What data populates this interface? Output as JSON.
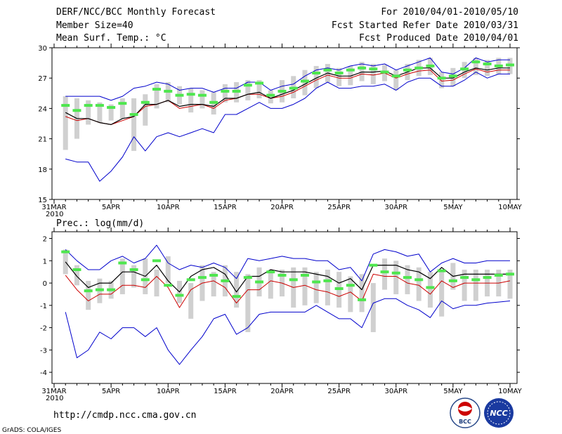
{
  "header": {
    "title": "DERF/NCC/BCC Monthly Forecast",
    "member": "Member Size=40",
    "variable1": "Mean Surf. Temp.: °C",
    "period": "For 2010/04/01-2010/05/10",
    "started": "Fcst Started Refer Date 2010/03/31",
    "produced": "Fcst Produced Date 2010/04/01"
  },
  "footer": {
    "url": "http://cmdp.ncc.cma.gov.cn",
    "credit": "GrADS: COLA/IGES",
    "logo_bcc": "BCC",
    "logo_ncc": "NCC"
  },
  "colors": {
    "bar": "#d0d0d0",
    "median": "#4ee64e",
    "mean": "#000000",
    "red": "#cc0000",
    "envelope": "#0000cc"
  },
  "chart_data": [
    {
      "type": "line",
      "title": "Mean Surf. Temp.: °C",
      "ylim": [
        15,
        30
      ],
      "yticks": [
        15,
        18,
        21,
        24,
        27,
        30
      ],
      "x_start_label": "31MAR",
      "x_year_label": "2010",
      "xtick_labels": [
        "31MAR",
        "5APR",
        "10APR",
        "15APR",
        "20APR",
        "25APR",
        "30APR",
        "5MAY",
        "10MAY"
      ],
      "xtick_days": [
        0,
        5,
        10,
        15,
        20,
        25,
        30,
        35,
        40
      ],
      "days": [
        1,
        2,
        3,
        4,
        5,
        6,
        7,
        8,
        9,
        10,
        11,
        12,
        13,
        14,
        15,
        16,
        17,
        18,
        19,
        20,
        21,
        22,
        23,
        24,
        25,
        26,
        27,
        28,
        29,
        30,
        31,
        32,
        33,
        34,
        35,
        36,
        37,
        38,
        39,
        40
      ],
      "series": [
        {
          "name": "box_low",
          "values": [
            19.9,
            21.0,
            22.4,
            22.6,
            22.8,
            23.0,
            19.8,
            22.3,
            24.0,
            24.6,
            24.4,
            23.6,
            24.0,
            23.4,
            24.6,
            24.6,
            24.8,
            25.0,
            24.5,
            24.6,
            25.0,
            25.3,
            26.0,
            26.6,
            26.2,
            26.3,
            26.7,
            26.4,
            26.7,
            25.8,
            26.8,
            27.2,
            27.3,
            26.0,
            26.2,
            27.0,
            27.3,
            27.2,
            27.4,
            27.4
          ]
        },
        {
          "name": "box_high",
          "values": [
            25.2,
            25.0,
            24.8,
            24.6,
            24.4,
            25.0,
            25.0,
            25.4,
            26.4,
            26.6,
            26.2,
            26.0,
            25.8,
            25.6,
            26.4,
            26.6,
            26.8,
            26.8,
            25.8,
            26.8,
            27.2,
            27.8,
            28.2,
            28.4,
            28.0,
            28.2,
            28.6,
            28.4,
            28.3,
            27.8,
            28.4,
            28.8,
            29.0,
            27.6,
            28.0,
            28.6,
            29.0,
            28.8,
            29.0,
            29.0
          ]
        },
        {
          "name": "median",
          "values": [
            24.3,
            23.8,
            24.3,
            24.3,
            24.1,
            24.5,
            23.4,
            24.6,
            25.9,
            25.7,
            25.3,
            25.4,
            25.3,
            24.6,
            25.7,
            25.7,
            26.3,
            26.5,
            25.3,
            25.7,
            26.0,
            26.7,
            27.5,
            27.8,
            27.5,
            27.8,
            28.0,
            27.9,
            27.6,
            27.2,
            27.8,
            28.0,
            28.2,
            27.0,
            27.2,
            27.9,
            28.6,
            28.4,
            28.2,
            28.3
          ]
        },
        {
          "name": "mean",
          "values": [
            23.6,
            23.0,
            23.0,
            22.6,
            22.4,
            23.0,
            23.2,
            24.4,
            24.4,
            24.8,
            24.2,
            24.4,
            24.4,
            24.2,
            25.0,
            25.0,
            25.4,
            25.6,
            25.0,
            25.4,
            25.8,
            26.4,
            27.0,
            27.5,
            27.2,
            27.2,
            27.6,
            27.6,
            27.7,
            27.2,
            27.6,
            28.0,
            28.0,
            27.0,
            27.0,
            27.6,
            28.0,
            27.8,
            28.0,
            28.0
          ]
        },
        {
          "name": "red",
          "values": [
            23.2,
            22.8,
            23.0,
            22.6,
            22.4,
            22.8,
            23.2,
            24.2,
            24.4,
            24.8,
            24.0,
            24.2,
            24.4,
            24.0,
            24.8,
            25.0,
            25.4,
            25.4,
            25.0,
            25.2,
            25.6,
            26.2,
            26.8,
            27.3,
            27.0,
            27.0,
            27.4,
            27.3,
            27.5,
            27.0,
            27.4,
            27.7,
            27.8,
            26.7,
            26.8,
            27.4,
            27.9,
            27.6,
            27.8,
            27.8
          ]
        },
        {
          "name": "env_high",
          "values": [
            25.2,
            25.2,
            25.2,
            25.2,
            24.8,
            25.2,
            26.0,
            26.2,
            26.6,
            26.4,
            25.8,
            26.0,
            26.0,
            25.6,
            26.0,
            26.0,
            26.6,
            26.6,
            25.8,
            26.2,
            26.4,
            27.2,
            27.8,
            28.0,
            27.8,
            28.2,
            28.4,
            28.2,
            28.4,
            27.8,
            28.2,
            28.6,
            29.0,
            27.6,
            27.4,
            28.0,
            29.0,
            28.6,
            28.8,
            28.8
          ]
        },
        {
          "name": "env_low",
          "values": [
            19.0,
            18.7,
            18.7,
            16.8,
            17.8,
            19.2,
            21.2,
            19.8,
            21.2,
            21.6,
            21.2,
            21.6,
            22.0,
            21.6,
            23.4,
            23.4,
            24.0,
            24.6,
            24.0,
            24.0,
            24.4,
            25.0,
            26.0,
            26.6,
            26.0,
            26.0,
            26.2,
            26.2,
            26.4,
            25.8,
            26.6,
            27.0,
            27.0,
            26.2,
            26.2,
            26.8,
            27.6,
            27.0,
            27.4,
            27.4
          ]
        }
      ]
    },
    {
      "type": "line",
      "title": "Prec.: log(mm/d)",
      "ylim": [
        -4.5,
        2.3
      ],
      "yticks": [
        -4,
        -3,
        -2,
        -1,
        0,
        1,
        2
      ],
      "x_start_label": "31MAR",
      "x_year_label": "2010",
      "xtick_labels": [
        "31MAR",
        "5APR",
        "10APR",
        "15APR",
        "20APR",
        "25APR",
        "30APR",
        "5MAY",
        "10MAY"
      ],
      "xtick_days": [
        0,
        5,
        10,
        15,
        20,
        25,
        30,
        35,
        40
      ],
      "days": [
        1,
        2,
        3,
        4,
        5,
        6,
        7,
        8,
        9,
        10,
        11,
        12,
        13,
        14,
        15,
        16,
        17,
        18,
        19,
        20,
        21,
        22,
        23,
        24,
        25,
        26,
        27,
        28,
        29,
        30,
        31,
        32,
        33,
        34,
        35,
        36,
        37,
        38,
        39,
        40
      ],
      "series": [
        {
          "name": "box_low",
          "values": [
            0.4,
            -0.1,
            -1.2,
            -0.9,
            -0.7,
            -0.5,
            -0.2,
            -0.5,
            -0.6,
            0.0,
            -0.9,
            -1.6,
            -0.8,
            -0.6,
            -0.6,
            -1.1,
            -2.2,
            -0.6,
            -0.7,
            -0.6,
            -1.1,
            -1.0,
            -0.9,
            -1.0,
            -1.1,
            -1.3,
            -1.3,
            -2.2,
            -0.3,
            -0.5,
            -0.5,
            -0.8,
            -1.1,
            -1.5,
            -0.3,
            -0.8,
            -0.8,
            -0.6,
            -0.6,
            -0.7
          ]
        },
        {
          "name": "box_high",
          "values": [
            1.5,
            0.8,
            0.1,
            0.2,
            0.1,
            1.1,
            0.8,
            1.1,
            0.6,
            1.2,
            0.1,
            0.0,
            0.8,
            0.5,
            0.8,
            0.5,
            0.4,
            0.7,
            0.6,
            0.6,
            0.7,
            0.7,
            0.5,
            0.6,
            0.5,
            0.3,
            0.4,
            0.0,
            1.1,
            1.0,
            0.8,
            0.7,
            0.5,
            0.5,
            0.9,
            0.6,
            0.6,
            0.6,
            0.6,
            0.6
          ]
        },
        {
          "name": "median",
          "values": [
            1.4,
            0.6,
            -0.35,
            -0.3,
            -0.3,
            0.9,
            0.6,
            0.15,
            1.0,
            -0.1,
            -0.55,
            0.15,
            0.25,
            0.35,
            0.1,
            -0.6,
            0.25,
            0.05,
            0.5,
            0.35,
            0.15,
            0.35,
            0.05,
            0.1,
            -0.25,
            -0.1,
            -0.75,
            0.8,
            0.5,
            0.45,
            0.25,
            0.15,
            -0.2,
            0.55,
            0.1,
            0.25,
            0.15,
            0.25,
            0.35,
            0.4
          ]
        },
        {
          "name": "mean",
          "values": [
            0.95,
            0.3,
            -0.2,
            0.0,
            0.0,
            0.5,
            0.5,
            0.3,
            0.8,
            0.1,
            -0.4,
            0.3,
            0.6,
            0.7,
            0.4,
            -0.4,
            0.3,
            0.3,
            0.6,
            0.5,
            0.5,
            0.5,
            0.4,
            0.3,
            0.0,
            0.2,
            -0.3,
            0.8,
            0.8,
            0.8,
            0.6,
            0.5,
            0.2,
            0.7,
            0.3,
            0.4,
            0.4,
            0.4,
            0.4,
            0.4
          ]
        },
        {
          "name": "red",
          "values": [
            0.35,
            -0.3,
            -0.8,
            -0.5,
            -0.5,
            -0.1,
            -0.1,
            -0.2,
            0.3,
            -0.2,
            -1.1,
            -0.3,
            0.0,
            0.1,
            -0.2,
            -0.9,
            -0.3,
            -0.3,
            0.1,
            0.0,
            -0.2,
            -0.1,
            -0.3,
            -0.4,
            -0.6,
            -0.4,
            -0.8,
            0.4,
            0.3,
            0.3,
            0.0,
            -0.1,
            -0.5,
            0.1,
            -0.2,
            0.0,
            0.0,
            0.0,
            0.0,
            0.1
          ]
        },
        {
          "name": "env_high",
          "values": [
            1.5,
            1.0,
            0.6,
            0.6,
            1.0,
            1.2,
            0.9,
            1.1,
            1.7,
            0.9,
            0.6,
            0.8,
            0.7,
            0.9,
            0.7,
            0.2,
            1.1,
            1.0,
            1.1,
            1.2,
            1.1,
            1.1,
            1.0,
            1.0,
            0.6,
            0.7,
            0.1,
            1.3,
            1.5,
            1.4,
            1.2,
            1.3,
            0.5,
            0.9,
            1.1,
            0.9,
            0.9,
            1.0,
            1.0,
            1.0
          ]
        },
        {
          "name": "env_low",
          "values": [
            -1.3,
            -3.35,
            -3.0,
            -2.2,
            -2.5,
            -2.0,
            -2.0,
            -2.4,
            -2.0,
            -3.0,
            -3.65,
            -3.0,
            -2.4,
            -1.6,
            -1.4,
            -2.3,
            -2.0,
            -1.4,
            -1.3,
            -1.3,
            -1.3,
            -1.3,
            -1.0,
            -1.3,
            -1.6,
            -1.6,
            -2.0,
            -0.9,
            -0.7,
            -0.7,
            -1.0,
            -1.2,
            -1.55,
            -0.8,
            -1.15,
            -1.0,
            -1.0,
            -0.9,
            -0.85,
            -0.8
          ]
        }
      ]
    }
  ]
}
